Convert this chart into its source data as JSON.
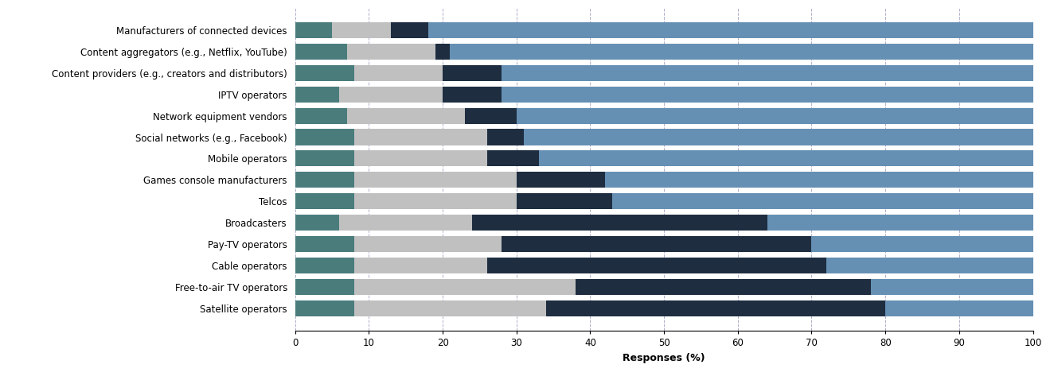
{
  "categories": [
    "Manufacturers of connected devices",
    "Content aggregators (e.g., Netflix, YouTube)",
    "Content providers (e.g., creators and distributors)",
    "IPTV operators",
    "Network equipment vendors",
    "Social networks (e.g., Facebook)",
    "Mobile operators",
    "Games console manufacturers",
    "Telcos",
    "Broadcasters",
    "Pay-TV operators",
    "Cable operators",
    "Free-to-air TV operators",
    "Satellite operators"
  ],
  "segments": {
    "Negative": [
      5,
      7,
      8,
      6,
      7,
      8,
      8,
      8,
      8,
      6,
      8,
      8,
      8,
      8
    ],
    "Neutral": [
      8,
      12,
      12,
      14,
      16,
      18,
      18,
      22,
      22,
      18,
      20,
      18,
      30,
      26
    ],
    "Uncertain": [
      5,
      2,
      8,
      8,
      7,
      5,
      7,
      12,
      13,
      40,
      42,
      46,
      40,
      46
    ],
    "Positive": [
      82,
      79,
      72,
      72,
      70,
      69,
      67,
      58,
      57,
      36,
      30,
      28,
      22,
      20
    ]
  },
  "colors": {
    "Negative": "#4a7c7c",
    "Neutral": "#c0c0c0",
    "Uncertain": "#1e2d40",
    "Positive": "#6590b4"
  },
  "xlabel": "Responses (%)",
  "xlim": [
    0,
    100
  ],
  "xticks": [
    0,
    10,
    20,
    30,
    40,
    50,
    60,
    70,
    80,
    90,
    100
  ],
  "background_color": "#ffffff",
  "bar_height": 0.75,
  "grid_color": "#9999bb",
  "label_fontsize": 8.5,
  "tick_fontsize": 8.5,
  "xlabel_fontsize": 9
}
